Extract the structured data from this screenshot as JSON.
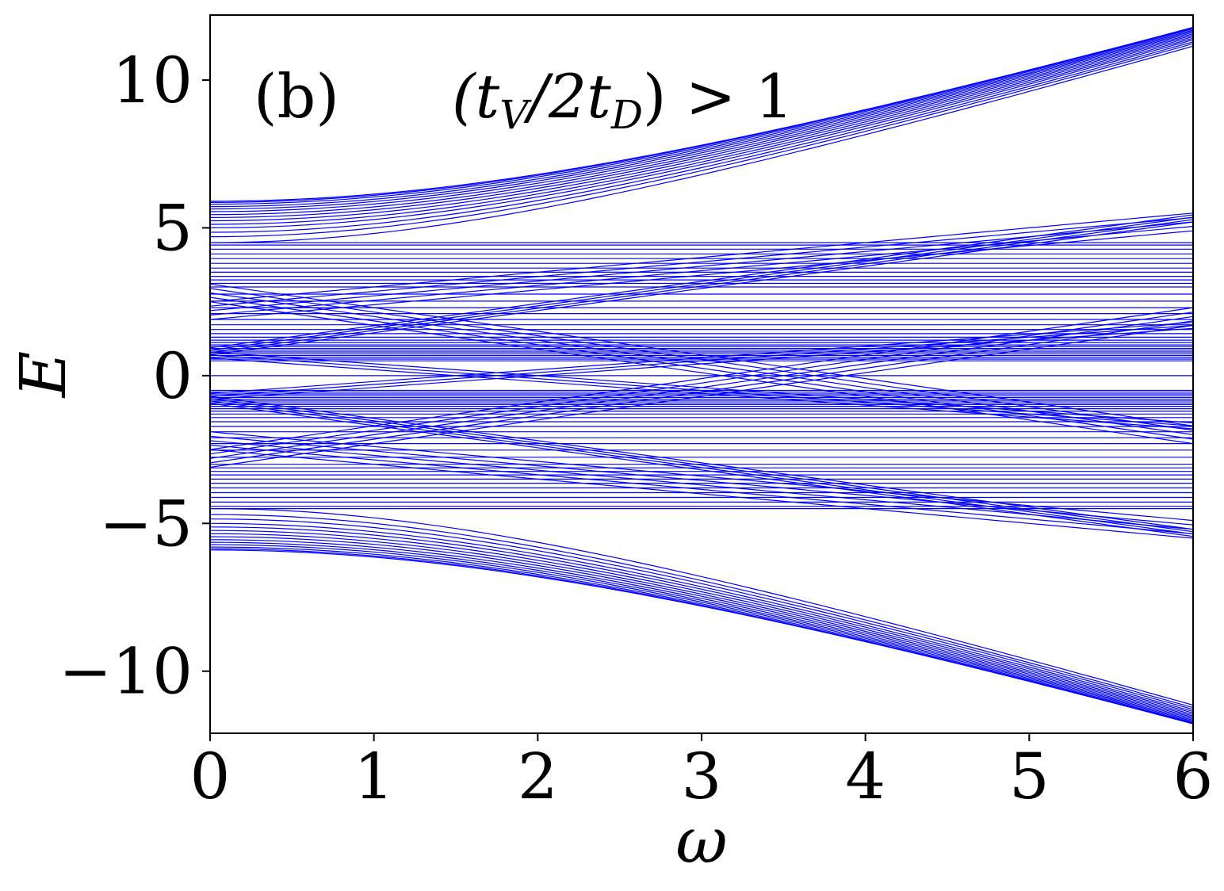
{
  "chart_data": {
    "type": "line",
    "panel_label": "(b)",
    "annotation": {
      "prefix": "(t",
      "s1": "V",
      "mid": "/2t",
      "s2": "D",
      "suffix": ") > 1"
    },
    "xlabel": "ω",
    "ylabel": "E",
    "xlim": [
      0,
      6
    ],
    "ylim": [
      -12.1,
      12.2
    ],
    "xticks": [
      0,
      1,
      2,
      3,
      4,
      5,
      6
    ],
    "xtick_labels": [
      "0",
      "1",
      "2",
      "3",
      "4",
      "5",
      "6"
    ],
    "yticks": [
      -10,
      -5,
      0,
      5,
      10
    ],
    "ytick_labels": [
      "−10",
      "−5",
      "0",
      "5",
      "10"
    ],
    "grid": false,
    "line_color": "#0000ff",
    "families": [
      {
        "name": "flat",
        "e0": [
          0,
          0.5,
          0.56,
          0.62,
          0.68,
          0.74,
          0.8,
          0.86,
          0.92,
          0.98,
          1.04,
          1.12,
          1.2,
          1.3,
          1.42,
          1.56,
          1.72,
          1.9,
          2.1,
          2.3,
          2.52,
          2.76,
          3.0,
          3.12,
          3.24,
          3.36,
          3.5,
          3.64,
          3.8,
          3.96,
          4.12,
          4.28,
          4.42,
          4.5
        ],
        "slope": 0
      },
      {
        "name": "curved",
        "e0": [
          4.5,
          4.7,
          4.85,
          5.0,
          5.12,
          5.24,
          5.35,
          5.45,
          5.55,
          5.64,
          5.72,
          5.8,
          5.86,
          5.9
        ],
        "slope": 1.7
      },
      {
        "name": "linear_up",
        "e0": [
          1.9,
          2.05,
          2.2,
          2.35,
          2.5
        ],
        "slope": 0.5
      },
      {
        "name": "linear_mid",
        "e0": [
          0.7,
          0.78,
          0.86,
          0.94
        ],
        "slope": 0.75
      },
      {
        "name": "linear_cross",
        "e0": [
          -3.1,
          -2.95,
          -2.8,
          -2.65,
          -2.5
        ],
        "slope": 0.8
      },
      {
        "name": "linear_low",
        "e0": [
          -0.6,
          -0.7,
          -0.8
        ],
        "slope": 0.4
      }
    ]
  }
}
